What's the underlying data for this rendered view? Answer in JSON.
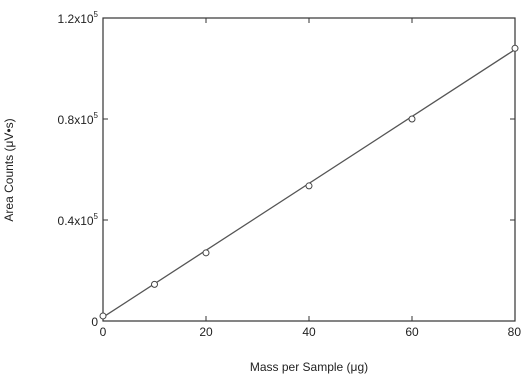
{
  "chart_data": {
    "type": "scatter",
    "xlabel": "Mass per Sample (μg)",
    "ylabel": "Area Counts (μV•s)",
    "xlim": [
      0,
      80
    ],
    "ylim": [
      0,
      120000
    ],
    "x_ticks": [
      {
        "value": 0,
        "label": "0"
      },
      {
        "value": 20,
        "label": "20"
      },
      {
        "value": 40,
        "label": "40"
      },
      {
        "value": 60,
        "label": "60"
      },
      {
        "value": 80,
        "label": "80"
      }
    ],
    "y_ticks": [
      {
        "value": 0,
        "base": "0",
        "exp": ""
      },
      {
        "value": 40000,
        "base": "0.4x10",
        "exp": "5"
      },
      {
        "value": 80000,
        "base": "0.8x10",
        "exp": "5"
      },
      {
        "value": 120000,
        "base": "1.2x10",
        "exp": "5"
      }
    ],
    "series": [
      {
        "marker": "open-circle",
        "points": [
          {
            "x": 0,
            "y": 2000
          },
          {
            "x": 10,
            "y": 14500
          },
          {
            "x": 20,
            "y": 27000
          },
          {
            "x": 40,
            "y": 53500
          },
          {
            "x": 60,
            "y": 80000
          },
          {
            "x": 80,
            "y": 108000
          }
        ]
      }
    ],
    "fit_line": {
      "x0": 0,
      "y0": 1500,
      "x1": 80,
      "y1": 107500
    },
    "grid": false,
    "line_color": "#555555",
    "marker_color": "#444444"
  }
}
